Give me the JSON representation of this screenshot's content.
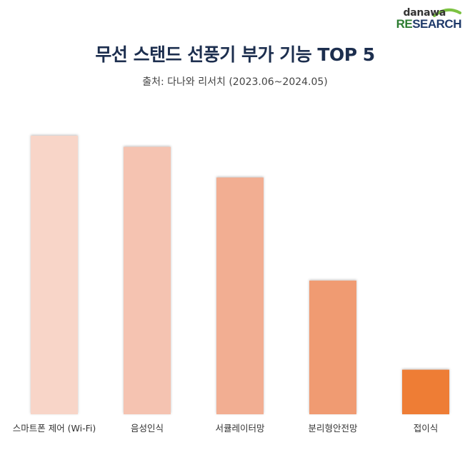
{
  "logo": {
    "top": "danawa",
    "bottom_prefix": "RE",
    "bottom_suffix": "SEARCH"
  },
  "title": "무선 스탠드 선풍기 부가 기능 TOP 5",
  "subtitle": "출처: 다나와 리서치 (2023.06~2024.05)",
  "chart_data": {
    "type": "bar",
    "title": "무선 스탠드 선풍기 부가 기능 TOP 5",
    "subtitle": "출처: 다나와 리서치 (2023.06~2024.05)",
    "xlabel": "",
    "ylabel": "",
    "ylim": [
      0,
      100
    ],
    "grid": false,
    "categories": [
      "스마트폰 제어 (Wi-Fi)",
      "음성인식",
      "서큘레이터망",
      "분리형안전망",
      "접이식"
    ],
    "values": [
      100,
      96,
      85,
      48,
      16
    ],
    "colors": [
      "#f8d5c8",
      "#f5c3b1",
      "#f2ae92",
      "#f09b72",
      "#ee7d34"
    ]
  }
}
